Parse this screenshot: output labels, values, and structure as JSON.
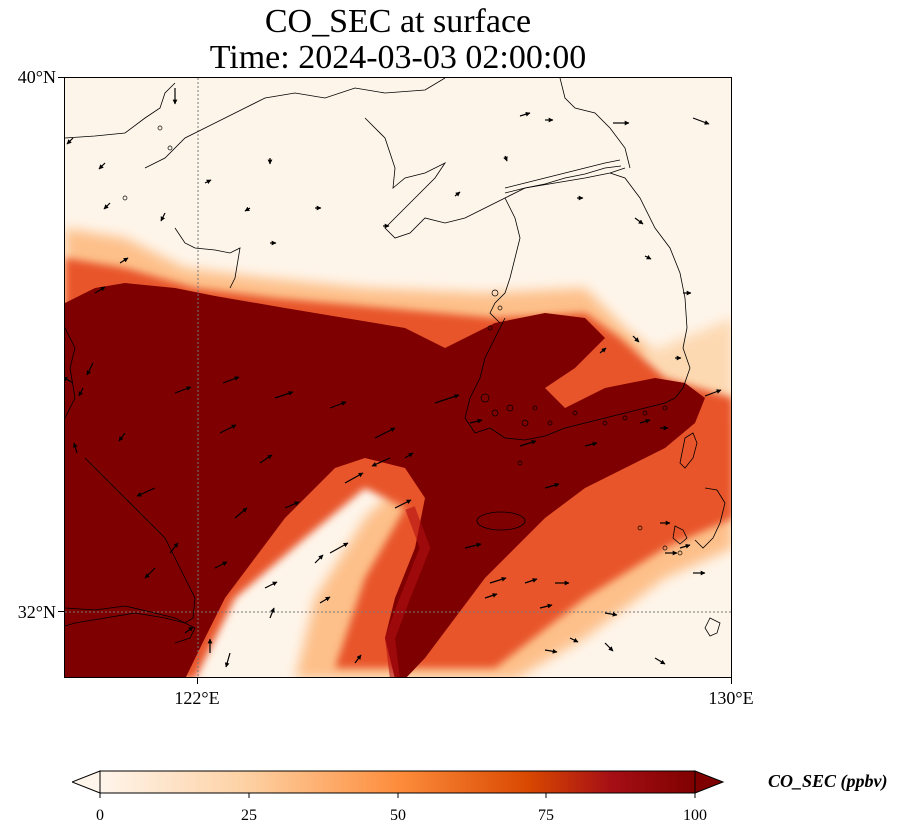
{
  "title": {
    "line1": "CO_SEC at surface",
    "line2": "Time: 2024-03-03 02:00:00"
  },
  "axes": {
    "lat_labels": [
      "40°N",
      "32°N"
    ],
    "lon_labels": [
      "122°E",
      "130°E"
    ]
  },
  "colorbar": {
    "label": "CO_SEC (ppbv)",
    "ticks": [
      "0",
      "25",
      "50",
      "75",
      "100"
    ],
    "range": [
      0,
      100
    ],
    "colormap": [
      "#fff5eb",
      "#fdd0a2",
      "#fd8d3c",
      "#d94801",
      "#a50f15",
      "#7f0000"
    ]
  },
  "colors": {
    "high_concentration": "#7f0000",
    "low_concentration": "#fff5eb",
    "coastline": "#000000",
    "wind_arrow": "#000000"
  },
  "icons": [
    "wind-vector-icon"
  ]
}
